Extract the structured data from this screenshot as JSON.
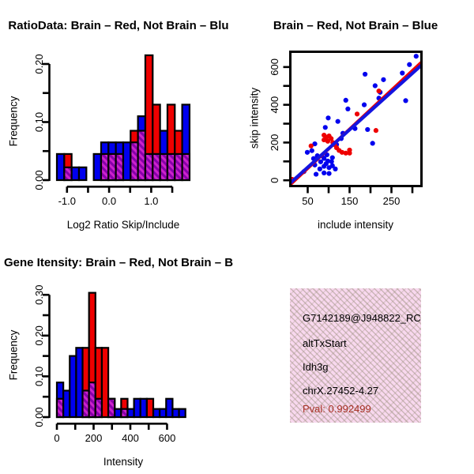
{
  "colors": {
    "blue": "#0000ee",
    "red": "#ee0000",
    "purple_base": "#8800aa",
    "purple_stripe": "#cc22cc",
    "fit_line_blue": "#1414e0",
    "fit_line_red": "#ee0000",
    "axis_black": "#000000",
    "info_box_pink": "#f8d8ee",
    "pval_red": "#a93226"
  },
  "info_box": {
    "lines": [
      {
        "text": "G7142189@J948822_RC",
        "color": "black"
      },
      {
        "text": "altTxStart",
        "color": "black"
      },
      {
        "text": "Idh3g",
        "color": "black"
      },
      {
        "text": "chrX.27452-4.27",
        "color": "black"
      },
      {
        "text": "Pval: 0.992499",
        "color": "red"
      }
    ]
  },
  "chart_data": [
    {
      "type": "bar",
      "title": "RatioData: Brain – Red, Not Brain – Blu",
      "xlabel": "Log2 Ratio Skip/Include",
      "ylabel": "Frequency",
      "ylim": [
        0,
        0.22
      ],
      "xlim": [
        -1.24,
        1.91
      ],
      "bin_start": -1.24,
      "bin_width": 0.175,
      "grid": false,
      "x_ticks": {
        "major": [
          {
            "v": -1.0,
            "label": "-1.0"
          },
          {
            "v": 0.0,
            "label": "0.0"
          },
          {
            "v": 1.0,
            "label": "1.0"
          }
        ],
        "minor": [
          -0.5,
          0.5,
          1.5
        ]
      },
      "y_ticks": {
        "major": [
          {
            "v": 0.0,
            "label": "0.00"
          },
          {
            "v": 0.1,
            "label": "0.10"
          },
          {
            "v": 0.2,
            "label": "0.20"
          }
        ],
        "minor": [
          0.05,
          0.15
        ]
      },
      "series": [
        {
          "name": "not-brain-blue",
          "values": [
            0.045,
            0.022,
            0.022,
            0.022,
            0,
            0.045,
            0.065,
            0.065,
            0.065,
            0.065,
            0.065,
            0.11,
            0.045,
            0.045,
            0.085,
            0.045,
            0.045,
            0.13
          ]
        },
        {
          "name": "brain-red",
          "values": [
            0,
            0.045,
            0,
            0,
            0,
            0,
            0.045,
            0.045,
            0.045,
            0,
            0.085,
            0.085,
            0.215,
            0.13,
            0.045,
            0.13,
            0.085,
            0.045
          ]
        }
      ]
    },
    {
      "type": "scatter",
      "title": "Brain – Red, Not Brain – Blue",
      "xlabel": "include intensity",
      "ylabel": "skip intensity",
      "xlim": [
        8.5,
        321.7
      ],
      "ylim": [
        -30.5,
        681
      ],
      "grid": false,
      "x_ticks": {
        "major": [
          {
            "v": 50,
            "label": "50"
          },
          {
            "v": 150,
            "label": "150"
          },
          {
            "v": 250,
            "label": "250"
          }
        ],
        "minor": [
          100,
          200,
          300
        ]
      },
      "y_ticks": {
        "major": [
          {
            "v": 0,
            "label": "0"
          },
          {
            "v": 200,
            "label": "200"
          },
          {
            "v": 400,
            "label": "400"
          },
          {
            "v": 600,
            "label": "600"
          }
        ],
        "minor": [
          100,
          300,
          500
        ]
      },
      "series": [
        {
          "name": "not-brain-blue",
          "points": [
            [
              309,
              657
            ],
            [
              293,
              613
            ],
            [
              276,
              568
            ],
            [
              187,
              562
            ],
            [
              231,
              533
            ],
            [
              211,
              501
            ],
            [
              223,
              466
            ],
            [
              284,
              422
            ],
            [
              220,
              435
            ],
            [
              141,
              424
            ],
            [
              146,
              378
            ],
            [
              185,
              400
            ],
            [
              99,
              330
            ],
            [
              122,
              312
            ],
            [
              163,
              274
            ],
            [
              193,
              269
            ],
            [
              92,
              280
            ],
            [
              134,
              249
            ],
            [
              205,
              196
            ],
            [
              130,
              221
            ],
            [
              119,
              189
            ],
            [
              67,
              193
            ],
            [
              60,
              157
            ],
            [
              49,
              148
            ],
            [
              73,
              130
            ],
            [
              64,
              115
            ],
            [
              89,
              116
            ],
            [
              81,
              98
            ],
            [
              98,
              102
            ],
            [
              107,
              99
            ],
            [
              67,
              81
            ],
            [
              89,
              74
            ],
            [
              101,
              67
            ],
            [
              41,
              46
            ],
            [
              70,
              32
            ],
            [
              89,
              39
            ],
            [
              101,
              36
            ],
            [
              116,
              60
            ],
            [
              109,
              77
            ],
            [
              79,
              60
            ],
            [
              94,
              88
            ],
            [
              84,
              130
            ],
            [
              96,
              135
            ],
            [
              109,
              120
            ]
          ]
        },
        {
          "name": "brain-red",
          "points": [
            [
              13,
              5
            ],
            [
              58,
              182
            ],
            [
              89,
              239
            ],
            [
              95,
              228
            ],
            [
              101,
              235
            ],
            [
              89,
              214
            ],
            [
              98,
              207
            ],
            [
              106,
              221
            ],
            [
              110,
              200
            ],
            [
              114,
              189
            ],
            [
              119,
              172
            ],
            [
              125,
              158
            ],
            [
              132,
              148
            ],
            [
              141,
              144
            ],
            [
              150,
              144
            ],
            [
              150,
              160
            ],
            [
              168,
              351
            ],
            [
              213,
              264
            ],
            [
              220,
              473
            ]
          ]
        }
      ],
      "fit_lines": [
        {
          "name": "brain-fit",
          "color": "red",
          "from": [
            8.5,
            -22
          ],
          "to": [
            321.7,
            625
          ]
        },
        {
          "name": "not-brain-fit",
          "color": "blue",
          "from": [
            8.5,
            -14
          ],
          "to": [
            321.7,
            610
          ]
        }
      ]
    },
    {
      "type": "bar",
      "title": "Gene Itensity: Brain – Red, Not Brain – B",
      "xlabel": "Intensity",
      "ylabel": "Frequency",
      "ylim": [
        0,
        0.315
      ],
      "xlim": [
        0,
        723
      ],
      "bin_start": 0,
      "bin_width": 35,
      "grid": false,
      "x_ticks": {
        "major": [
          {
            "v": 0,
            "label": "0"
          },
          {
            "v": 200,
            "label": "200"
          },
          {
            "v": 400,
            "label": "400"
          },
          {
            "v": 600,
            "label": "600"
          }
        ],
        "minor": [
          100,
          300,
          500
        ]
      },
      "y_ticks": {
        "major": [
          {
            "v": 0.0,
            "label": "0.00"
          },
          {
            "v": 0.1,
            "label": "0.10"
          },
          {
            "v": 0.2,
            "label": "0.20"
          },
          {
            "v": 0.3,
            "label": "0.30"
          }
        ],
        "minor": [
          0.05,
          0.15,
          0.25
        ]
      },
      "series": [
        {
          "name": "not-brain-blue",
          "values": [
            0.085,
            0.065,
            0.15,
            0.17,
            0.065,
            0.085,
            0.045,
            0,
            0.045,
            0.02,
            0.02,
            0.02,
            0.045,
            0.045,
            0,
            0.02,
            0.02,
            0.045,
            0.02,
            0.02
          ]
        },
        {
          "name": "brain-red",
          "values": [
            0.045,
            0,
            0,
            0,
            0.17,
            0.305,
            0.17,
            0.17,
            0.045,
            0,
            0.045,
            0,
            0,
            0,
            0.045,
            0,
            0,
            0,
            0,
            0
          ]
        }
      ]
    }
  ]
}
